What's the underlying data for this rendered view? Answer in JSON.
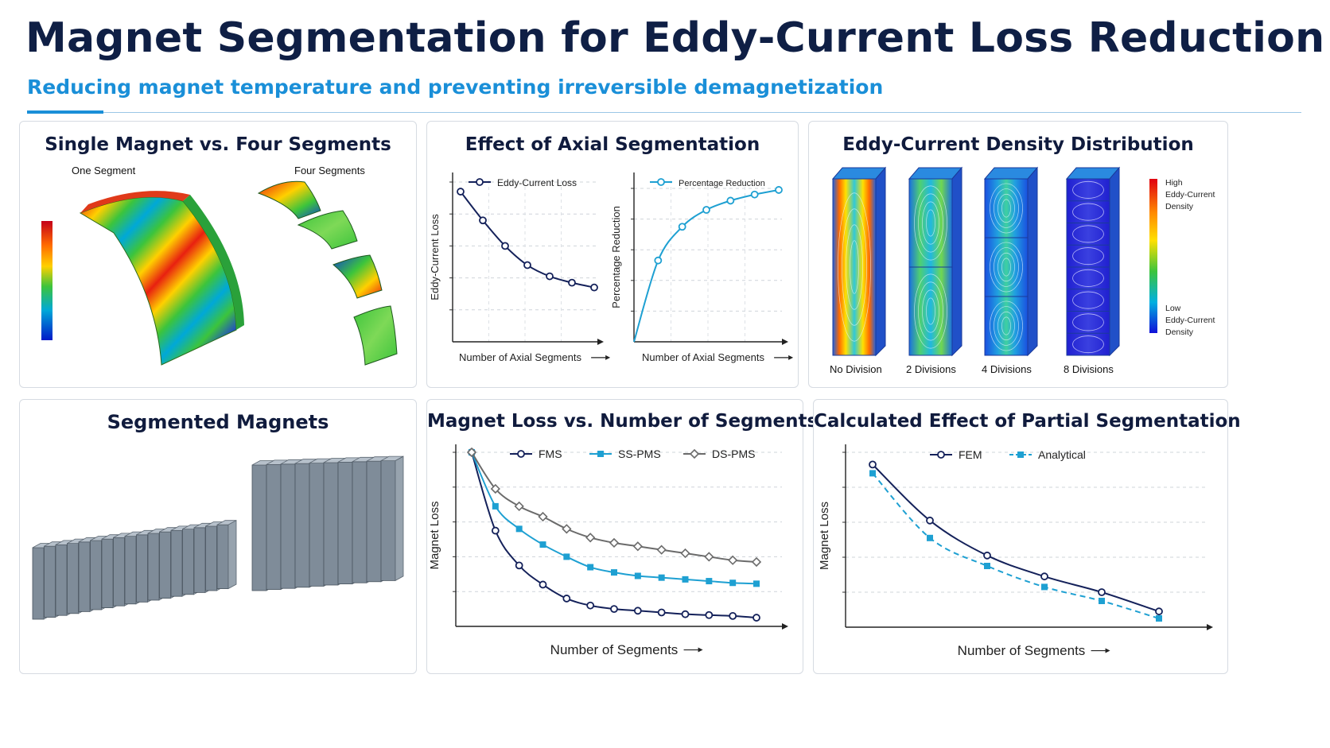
{
  "header": {
    "title": "Magnet Segmentation for Eddy-Current Loss Reduction",
    "subtitle": "Reducing magnet temperature and preventing irreversible demagnetization"
  },
  "colors": {
    "navy": "#14215a",
    "cyan": "#1ea0d2",
    "gray": "#6b6b6b",
    "title": "#0f1f45",
    "accent": "#1a8fd8"
  },
  "panel_single": {
    "title": "Single Magnet vs. Four Segments",
    "label_one": "One Segment",
    "label_four": "Four Segments"
  },
  "panel_density": {
    "title": "Eddy-Current Density Distribution",
    "legend_high": "High\nEddy-Current\nDensity",
    "legend_high_lines": [
      "High",
      "Eddy-Current",
      "Density"
    ],
    "legend_low_lines": [
      "Low",
      "Eddy-Current",
      "Density"
    ],
    "labels": [
      "No Division",
      "2 Divisions",
      "4 Divisions",
      "8 Divisions"
    ]
  },
  "panel_segmented": {
    "title": "Segmented Magnets"
  },
  "chart_data": [
    {
      "type": "line",
      "title": "Effect of Axial Segmentation",
      "xlabel": "Number of Axial Segments",
      "ylabel": "Eddy-Current Loss",
      "x": [
        1,
        2,
        3,
        4,
        5,
        6,
        7
      ],
      "ylim": [
        0,
        10
      ],
      "series": [
        {
          "name": "Eddy-Current Loss",
          "color": "#14215a",
          "values": [
            9.4,
            7.6,
            6.0,
            4.8,
            4.1,
            3.7,
            3.4
          ]
        }
      ],
      "grid": true
    },
    {
      "type": "line",
      "xlabel": "Number of Axial Segments",
      "ylabel": "Percentage Reduction",
      "x": [
        1,
        2,
        3,
        4,
        5,
        6,
        7
      ],
      "ylim": [
        0,
        10
      ],
      "series": [
        {
          "name": "Percentage Reduction",
          "color": "#1ea0d2",
          "values": [
            0,
            5.3,
            7.5,
            8.6,
            9.2,
            9.6,
            9.9
          ]
        }
      ],
      "grid": true
    },
    {
      "type": "line",
      "title": "Magnet Loss vs. Number of Segments",
      "xlabel": "Number of Segments",
      "ylabel": "Magnet Loss",
      "x": [
        1,
        2,
        3,
        4,
        5,
        6,
        7,
        8,
        9,
        10,
        11,
        12,
        13
      ],
      "ylim": [
        0,
        10
      ],
      "series": [
        {
          "name": "FMS",
          "color": "#14215a",
          "values": [
            10,
            5.5,
            3.5,
            2.4,
            1.6,
            1.2,
            1.0,
            0.9,
            0.8,
            0.7,
            0.65,
            0.6,
            0.5
          ]
        },
        {
          "name": "SS-PMS",
          "color": "#1ea0d2",
          "values": [
            10,
            6.9,
            5.6,
            4.7,
            4.0,
            3.4,
            3.1,
            2.9,
            2.8,
            2.7,
            2.6,
            2.5,
            2.45
          ]
        },
        {
          "name": "DS-PMS",
          "color": "#6b6b6b",
          "values": [
            10,
            7.9,
            6.9,
            6.3,
            5.6,
            5.1,
            4.8,
            4.6,
            4.4,
            4.2,
            4.0,
            3.8,
            3.7
          ]
        }
      ],
      "grid": true
    },
    {
      "type": "line",
      "title": "Calculated Effect of Partial Segmentation",
      "xlabel": "Number of Segments",
      "ylabel": "Magnet Loss",
      "x": [
        1,
        2,
        3,
        4,
        5,
        6
      ],
      "ylim": [
        0,
        10
      ],
      "series": [
        {
          "name": "FEM",
          "color": "#14215a",
          "values": [
            9.3,
            6.1,
            4.1,
            2.9,
            2.0,
            0.9
          ]
        },
        {
          "name": "Analytical",
          "color": "#1ea0d2",
          "values": [
            8.8,
            5.1,
            3.5,
            2.3,
            1.5,
            0.5
          ]
        }
      ],
      "grid": true
    }
  ]
}
